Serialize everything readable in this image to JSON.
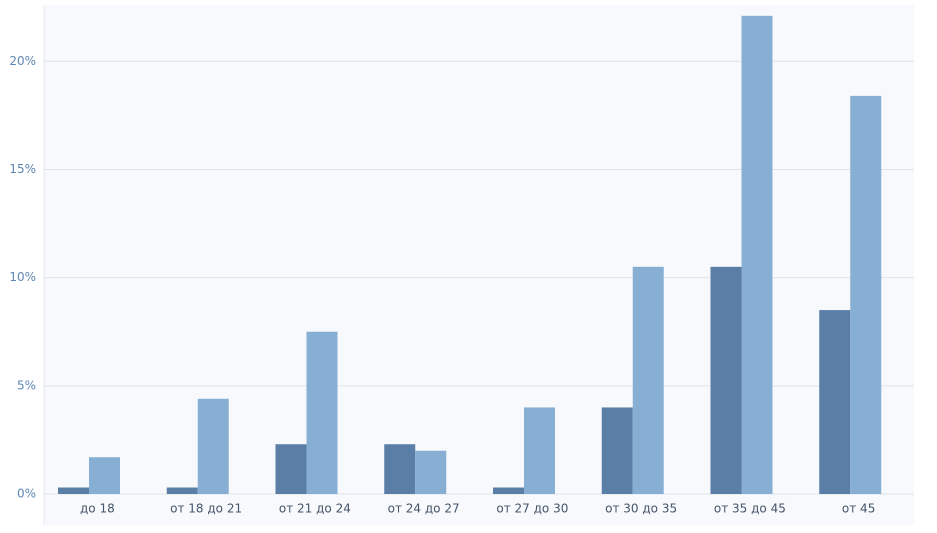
{
  "chart_data": {
    "type": "bar",
    "categories": [
      "до 18",
      "от 18 до 21",
      "от 21 до 24",
      "от 24 до 27",
      "от 27 до 30",
      "от 30 до 35",
      "от 35 до 45",
      "от 45"
    ],
    "series": [
      {
        "color": "#5a7ea6",
        "values": [
          0.3,
          0.3,
          2.3,
          2.3,
          0.3,
          4.0,
          10.5,
          8.5
        ]
      },
      {
        "color": "#86afd3",
        "values": [
          1.7,
          4.4,
          7.5,
          2.0,
          4.0,
          10.5,
          22.1,
          18.4
        ]
      }
    ],
    "ylim": [
      0,
      22.6
    ],
    "yticks": [
      {
        "value": 0,
        "label": "0%"
      },
      {
        "value": 5,
        "label": "5%"
      },
      {
        "value": 10,
        "label": "10%"
      },
      {
        "value": 15,
        "label": "15%"
      },
      {
        "value": 20,
        "label": "20%"
      }
    ],
    "grid": true
  }
}
